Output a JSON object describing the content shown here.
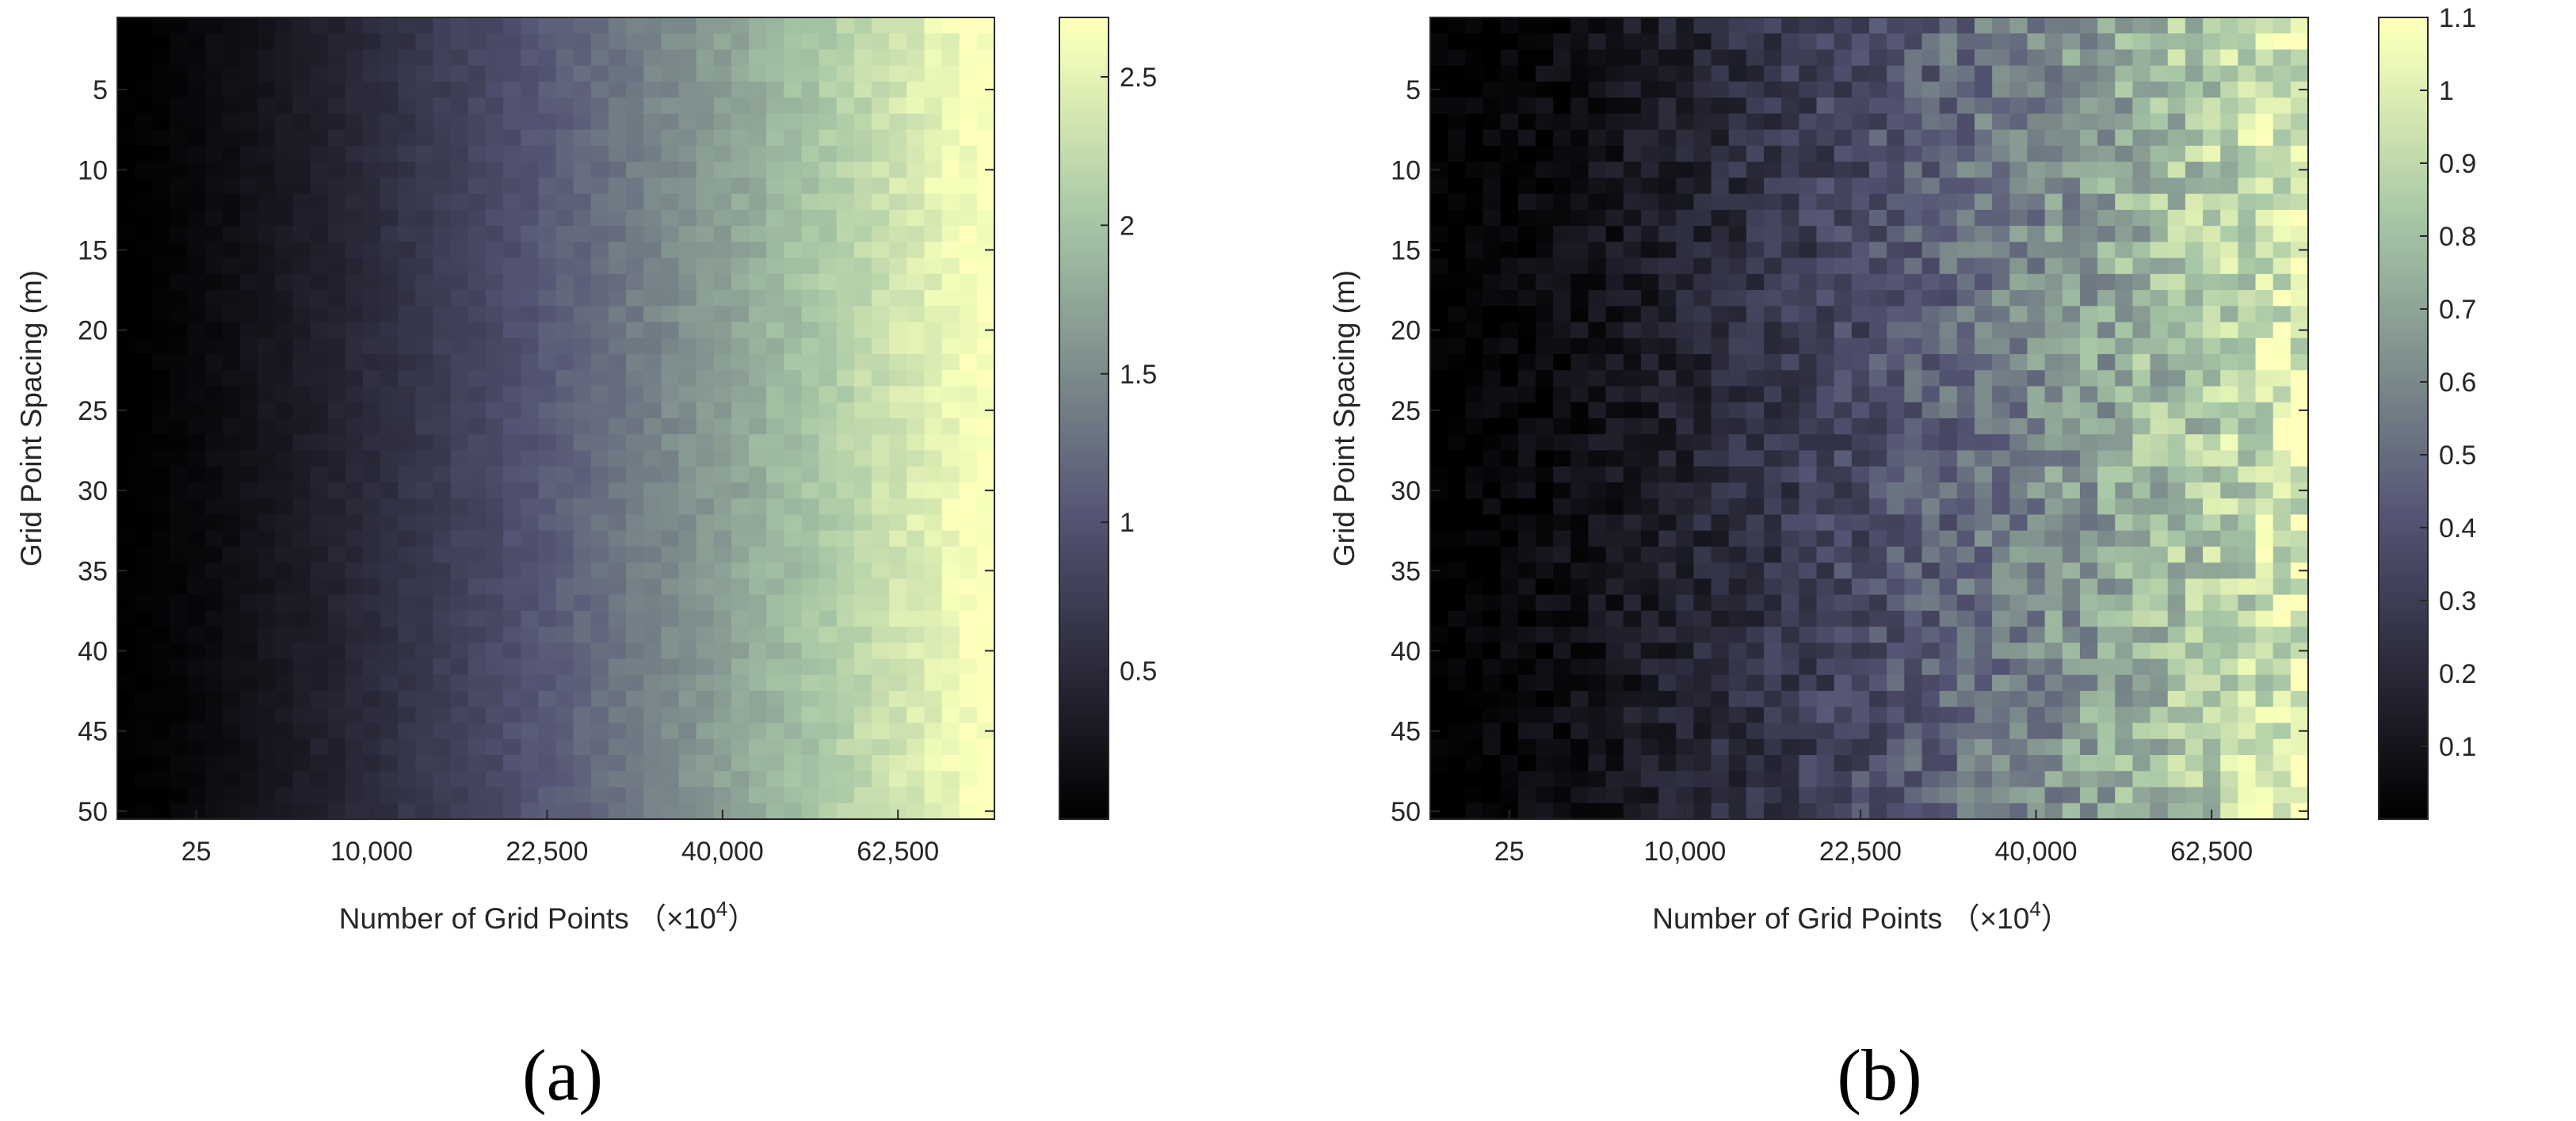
{
  "chart_data": [
    {
      "type": "heatmap",
      "panel_label": "(a)",
      "xlabel": "Number of Grid Points （×10",
      "xlabel_sup": "4",
      "xlabel_end": "）",
      "ylabel": "Grid Point Spacing (m)",
      "x_tick_labels": [
        "25",
        "10,000",
        "22,500",
        "40,000",
        "62,500"
      ],
      "x_tick_columns": [
        5,
        15,
        25,
        35,
        45
      ],
      "y_range": [
        1,
        50
      ],
      "y_ticks": [
        5,
        10,
        15,
        20,
        25,
        30,
        35,
        40,
        45,
        50
      ],
      "grid": "50x50",
      "colormap": "bone",
      "colorbar": {
        "range": [
          0,
          2.7
        ],
        "ticks": [
          0.5,
          1,
          1.5,
          2,
          2.5
        ],
        "tick_labels": [
          "0.5",
          "1",
          "1.5",
          "2",
          "2.5"
        ]
      },
      "value_trend": {
        "description": "value rises with column index",
        "min": 0.0,
        "max": 2.7,
        "exponent": 1.3,
        "noise": 0.1
      }
    },
    {
      "type": "heatmap",
      "panel_label": "(b)",
      "xlabel": "Number of Grid Points （×10",
      "xlabel_sup": "4",
      "xlabel_end": "）",
      "ylabel": "Grid Point Spacing (m)",
      "x_tick_labels": [
        "25",
        "10,000",
        "22,500",
        "40,000",
        "62,500"
      ],
      "x_tick_columns": [
        5,
        15,
        25,
        35,
        45
      ],
      "y_range": [
        1,
        50
      ],
      "y_ticks": [
        5,
        10,
        15,
        20,
        25,
        30,
        35,
        40,
        45,
        50
      ],
      "grid": "50x50",
      "colormap": "bone",
      "colorbar": {
        "range": [
          0,
          1.1
        ],
        "ticks": [
          0.1,
          0.2,
          0.3,
          0.4,
          0.5,
          0.6,
          0.7,
          0.8,
          0.9,
          1,
          1.1
        ],
        "tick_labels": [
          "0.1",
          "0.2",
          "0.3",
          "0.4",
          "0.5",
          "0.6",
          "0.7",
          "0.8",
          "0.9",
          "1",
          "1.1"
        ]
      },
      "value_trend": {
        "description": "value rises with column index, noisier",
        "min": 0.0,
        "max": 1.0,
        "exponent": 1.4,
        "noise": 0.15
      }
    }
  ]
}
